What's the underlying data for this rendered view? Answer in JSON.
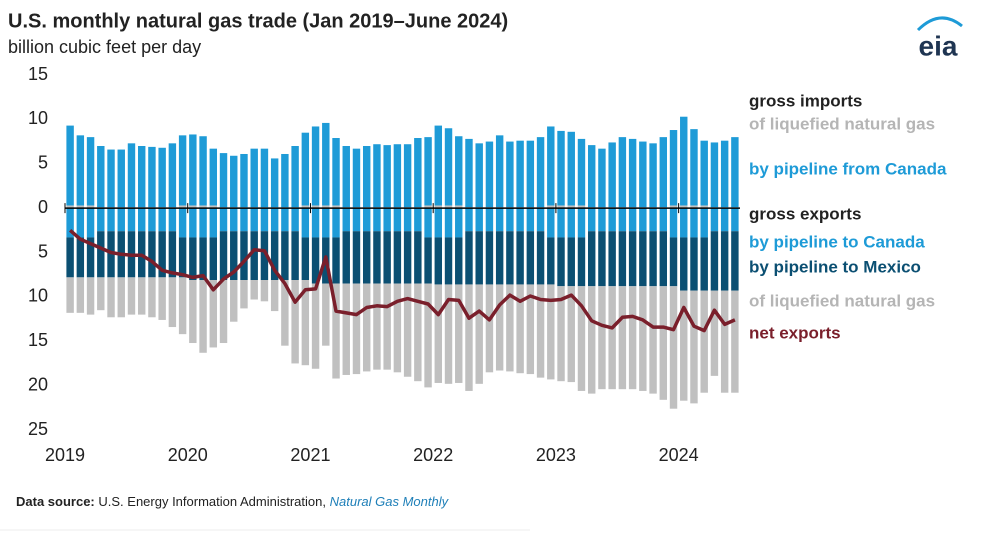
{
  "chart_data": {
    "type": "bar",
    "title": "U.S. monthly natural gas trade (Jan 2019–June 2024)",
    "subtitle": "billion cubic feet per day",
    "logo": "eia",
    "annotations": [
      "gross imports",
      "gross exports"
    ],
    "source": {
      "label": "Data source:",
      "text": "U.S. Energy Information Administration,",
      "link": "Natural Gas Monthly"
    },
    "categories": [
      "2019",
      null,
      null,
      null,
      null,
      null,
      null,
      null,
      null,
      null,
      null,
      null,
      "2020",
      null,
      null,
      null,
      null,
      null,
      null,
      null,
      null,
      null,
      null,
      null,
      "2021",
      null,
      null,
      null,
      null,
      null,
      null,
      null,
      null,
      null,
      null,
      null,
      "2022",
      null,
      null,
      null,
      null,
      null,
      null,
      null,
      null,
      null,
      null,
      null,
      "2023",
      null,
      null,
      null,
      null,
      null,
      null,
      null,
      null,
      null,
      null,
      null,
      "2024",
      null,
      null,
      null,
      null,
      null
    ],
    "ylim": [
      -25,
      15
    ],
    "yticks": [
      15,
      10,
      5,
      0,
      {
        "value": -5,
        "label": "5"
      },
      {
        "value": -10,
        "label": "10"
      },
      {
        "value": -15,
        "label": "15"
      },
      {
        "value": -20,
        "label": "20"
      },
      {
        "value": -25,
        "label": "25"
      }
    ],
    "grid": false,
    "series": [
      {
        "name": "of liquefied natural gas",
        "color": "#c0c0c0",
        "type": "bar",
        "values": [
          0.3,
          0.3,
          0.3,
          0.1,
          0.1,
          0.1,
          0.1,
          0.1,
          0.1,
          0.1,
          0.1,
          0.3,
          0.3,
          0.3,
          0.3,
          0.1,
          0.1,
          0.1,
          0.1,
          0.1,
          0.1,
          0.1,
          0.1,
          0.3,
          0.3,
          0.3,
          0.3,
          0.1,
          0.1,
          0.1,
          0.1,
          0.1,
          0.1,
          0.1,
          0.1,
          0.3,
          0.3,
          0.3,
          0.3,
          0.1,
          0.1,
          0.1,
          0.1,
          0.1,
          0.1,
          0.1,
          0.1,
          0.3,
          0.3,
          0.3,
          0.3,
          0.1,
          0.1,
          0.1,
          0.1,
          0.1,
          0.1,
          0.1,
          0.1,
          0.3,
          0.3,
          0.3,
          0.3,
          0.1,
          0.1,
          0.1
        ]
      },
      {
        "name": "by pipeline from Canada",
        "color": "#1e9bd7",
        "type": "bar",
        "values": [
          9.0,
          7.9,
          7.7,
          6.9,
          6.5,
          6.5,
          7.2,
          6.9,
          6.8,
          6.7,
          7.2,
          7.9,
          8.0,
          7.8,
          6.4,
          6.1,
          5.8,
          6.0,
          6.6,
          6.6,
          5.5,
          6.0,
          6.9,
          8.2,
          8.9,
          9.3,
          7.6,
          6.9,
          6.6,
          6.9,
          7.1,
          7.0,
          7.1,
          7.1,
          7.8,
          7.7,
          9.0,
          8.7,
          7.8,
          7.7,
          7.2,
          7.4,
          8.1,
          7.4,
          7.5,
          7.5,
          7.9,
          8.9,
          8.4,
          8.3,
          7.5,
          7.0,
          6.6,
          7.3,
          7.9,
          7.7,
          7.4,
          7.2,
          7.9,
          8.5,
          10.0,
          8.6,
          7.3,
          7.3,
          7.5,
          7.9
        ]
      },
      {
        "name": "by pipeline to Canada",
        "color": "#1e9bd7",
        "type": "bar",
        "values": [
          -3.3,
          -3.3,
          -3.3,
          -2.6,
          -2.6,
          -2.6,
          -2.6,
          -2.6,
          -2.6,
          -2.6,
          -2.6,
          -3.3,
          -3.3,
          -3.3,
          -3.3,
          -2.6,
          -2.6,
          -2.6,
          -2.6,
          -2.6,
          -2.6,
          -2.6,
          -2.6,
          -3.3,
          -3.3,
          -3.3,
          -3.3,
          -2.6,
          -2.6,
          -2.6,
          -2.6,
          -2.6,
          -2.6,
          -2.6,
          -2.6,
          -3.3,
          -3.3,
          -3.3,
          -3.3,
          -2.6,
          -2.6,
          -2.6,
          -2.6,
          -2.6,
          -2.6,
          -2.6,
          -2.6,
          -3.3,
          -3.3,
          -3.3,
          -3.3,
          -2.6,
          -2.6,
          -2.6,
          -2.6,
          -2.6,
          -2.6,
          -2.6,
          -2.6,
          -3.3,
          -3.3,
          -3.3,
          -3.3,
          -2.6,
          -2.6,
          -2.6
        ]
      },
      {
        "name": "by pipeline to Mexico",
        "color": "#0b4f72",
        "type": "bar",
        "values": [
          -4.5,
          -4.5,
          -4.5,
          -5.2,
          -5.2,
          -5.2,
          -5.2,
          -5.2,
          -5.2,
          -5.2,
          -5.2,
          -4.5,
          -4.8,
          -4.8,
          -4.8,
          -5.5,
          -5.5,
          -5.5,
          -5.5,
          -5.5,
          -5.5,
          -5.5,
          -5.5,
          -4.8,
          -5.2,
          -5.2,
          -5.2,
          -5.9,
          -5.9,
          -5.9,
          -5.9,
          -5.9,
          -5.9,
          -5.9,
          -5.9,
          -5.2,
          -5.3,
          -5.3,
          -5.3,
          -6.0,
          -6.0,
          -6.0,
          -6.0,
          -6.0,
          -6.0,
          -6.0,
          -6.0,
          -5.3,
          -5.5,
          -5.5,
          -5.5,
          -6.2,
          -6.2,
          -6.2,
          -6.2,
          -6.2,
          -6.2,
          -6.2,
          -6.2,
          -5.5,
          -6.0,
          -6.0,
          -6.0,
          -6.7,
          -6.7,
          -6.7
        ]
      },
      {
        "name": "of liquefied natural gas",
        "color": "#c0c0c0",
        "type": "bar",
        "values": [
          -4.0,
          -4.0,
          -4.2,
          -3.7,
          -4.5,
          -4.5,
          -4.2,
          -4.2,
          -4.5,
          -4.8,
          -5.6,
          -6.4,
          -7.1,
          -8.2,
          -7.6,
          -7.1,
          -4.7,
          -3.2,
          -2.2,
          -2.4,
          -3.5,
          -7.4,
          -9.4,
          -9.6,
          -9.6,
          -7.0,
          -10.7,
          -10.3,
          -10.2,
          -9.9,
          -9.7,
          -9.7,
          -10.0,
          -10.5,
          -11.0,
          -11.7,
          -11.1,
          -11.2,
          -11.1,
          -12.0,
          -11.2,
          -9.9,
          -9.7,
          -9.8,
          -10.0,
          -10.1,
          -10.5,
          -10.7,
          -10.7,
          -10.8,
          -11.8,
          -12.1,
          -11.6,
          -11.6,
          -11.6,
          -11.6,
          -11.8,
          -12.1,
          -12.8,
          -13.8,
          -12.4,
          -12.7,
          -11.5,
          -9.6,
          -11.5,
          -11.5
        ]
      },
      {
        "name": "net exports",
        "color": "#7a1f2b",
        "type": "line",
        "values": [
          -2.5,
          -3.5,
          -4.0,
          -4.5,
          -5.0,
          -5.2,
          -5.3,
          -5.3,
          -6.0,
          -7.0,
          -7.3,
          -7.5,
          -7.8,
          -7.6,
          -9.2,
          -8.0,
          -7.2,
          -6.0,
          -4.7,
          -4.8,
          -7.0,
          -8.5,
          -10.6,
          -9.2,
          -9.1,
          -5.5,
          -11.6,
          -11.8,
          -12.0,
          -11.2,
          -11.0,
          -11.1,
          -10.5,
          -10.2,
          -10.5,
          -10.8,
          -12.0,
          -10.3,
          -10.4,
          -12.4,
          -11.6,
          -12.6,
          -10.9,
          -9.8,
          -10.5,
          -9.9,
          -10.3,
          -10.4,
          -10.3,
          -9.8,
          -11.0,
          -12.7,
          -13.2,
          -13.5,
          -12.3,
          -12.2,
          -12.6,
          -13.4,
          -13.4,
          -13.7,
          -11.2,
          -13.3,
          -13.8,
          -11.5,
          -13.1,
          -12.6
        ]
      }
    ]
  }
}
